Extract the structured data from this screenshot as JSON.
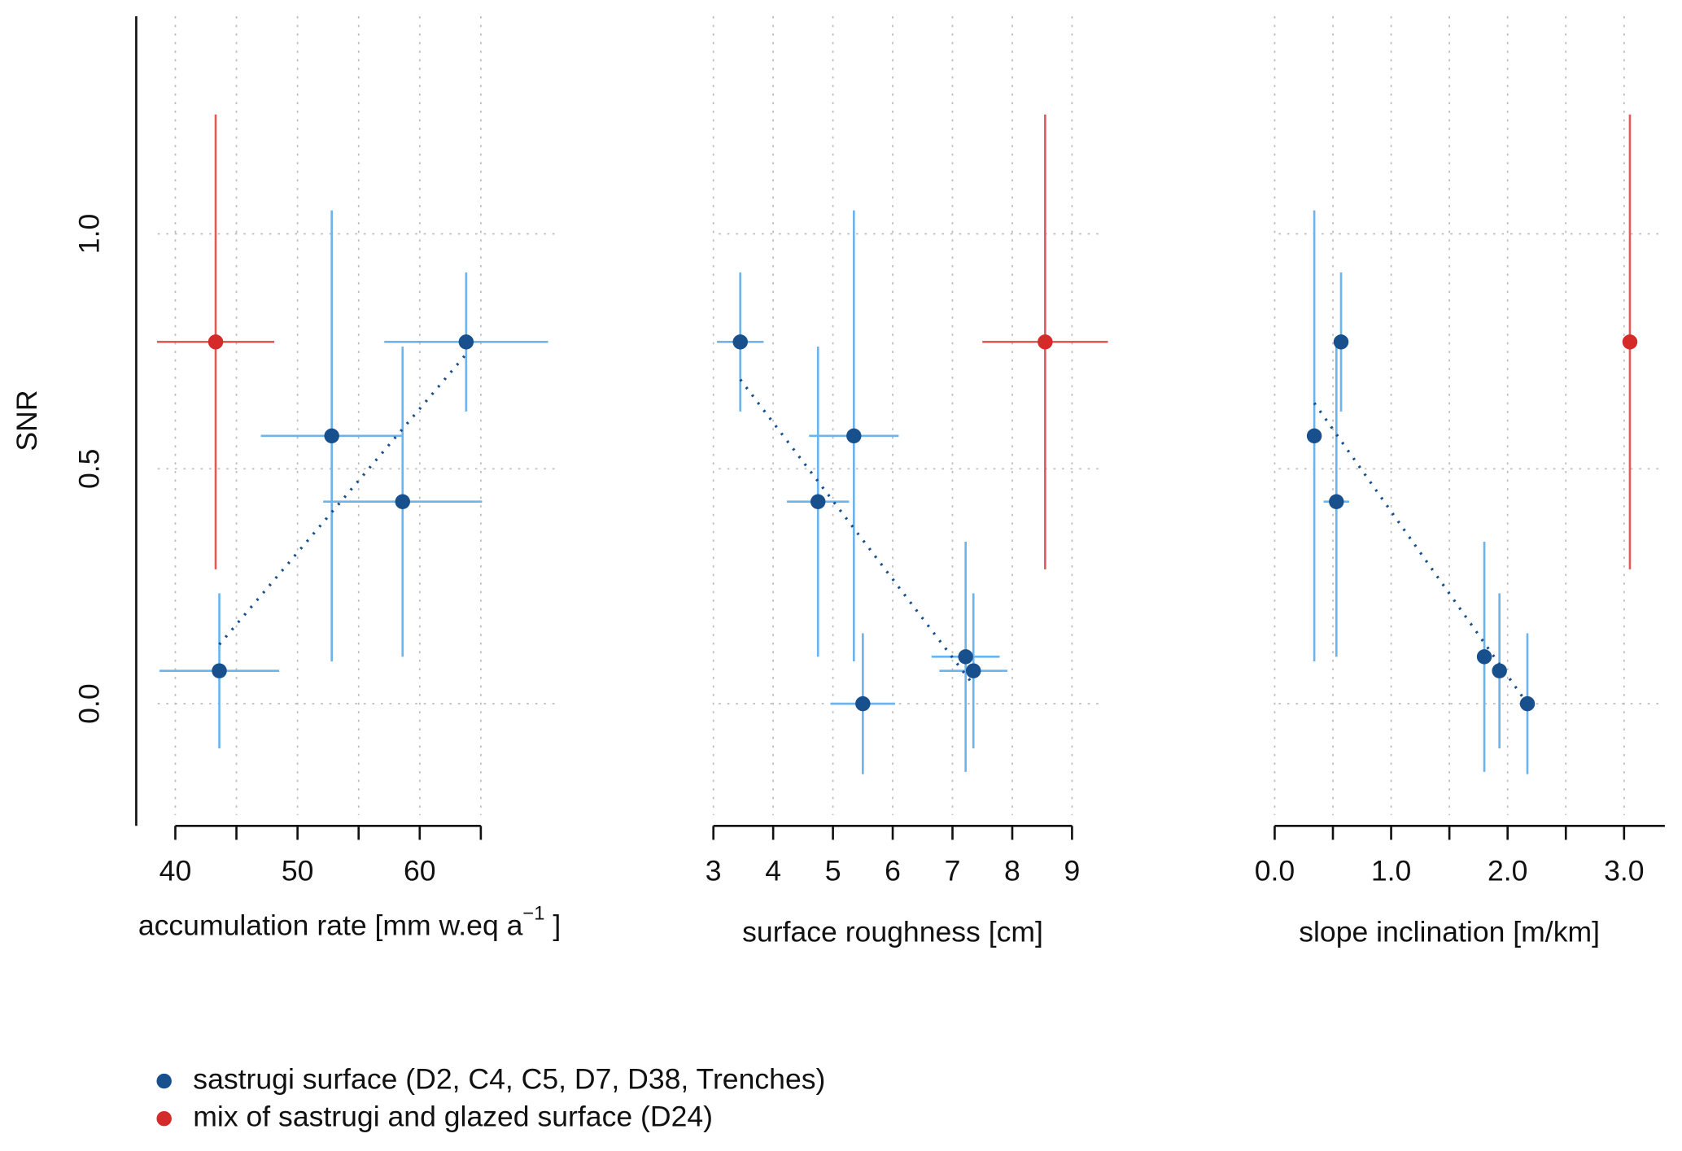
{
  "chart_data": [
    {
      "type": "scatter",
      "ylabel": "SNR",
      "xlabel": "accumulation rate [mm w.eq a",
      "xlabel_sup": "−1",
      "xlabel_end": " ]",
      "xlim": [
        36.8,
        71.3
      ],
      "xticks": [
        40,
        50,
        60
      ],
      "xminor": [
        45,
        55,
        65
      ],
      "ylim": [
        -0.26,
        1.463
      ],
      "yticks": [
        {
          "value": 0,
          "label": "0.0"
        },
        {
          "value": 0.5,
          "label": "0.5"
        },
        {
          "value": 1.0,
          "label": "1.0"
        }
      ],
      "grid": true,
      "series": [
        {
          "name": "sastrugi surface (D2, C4, C5, D7, D38, Trenches)",
          "color": "#17508c",
          "errcolor": "#6cb4ec",
          "x": [
            43.6,
            52.8,
            58.6,
            63.8
          ],
          "values": [
            0.07,
            0.57,
            0.43,
            0.77
          ],
          "xerr": [
            4.9,
            5.8,
            6.5,
            6.7
          ],
          "yerr": [
            0.165,
            0.48,
            0.33,
            0.148
          ]
        },
        {
          "name": "mix of sastrugi and glazed surface (D24)",
          "color": "#d42a2a",
          "errcolor": "#df5a5a",
          "x": [
            43.3
          ],
          "values": [
            0.77
          ],
          "xerr": [
            4.8
          ],
          "yerr": [
            0.484
          ]
        }
      ],
      "trend": {
        "color": "#17508c",
        "x": [
          43.6,
          63.8
        ],
        "values": [
          0.126,
          0.744
        ]
      }
    },
    {
      "type": "scatter",
      "xlabel": "surface roughness [cm]",
      "xlim": [
        2.73,
        9.46
      ],
      "xticks": [
        3,
        4,
        5,
        6,
        7,
        8,
        9
      ],
      "ylim": [
        -0.26,
        1.463
      ],
      "yticks": [
        0,
        0.5,
        1.0
      ],
      "grid": true,
      "series": [
        {
          "name": "sastrugi surface (D2, C4, C5, D7, D38, Trenches)",
          "color": "#17508c",
          "errcolor": "#6cb4ec",
          "x": [
            3.45,
            4.75,
            5.35,
            5.5,
            7.22,
            7.35
          ],
          "values": [
            0.77,
            0.43,
            0.57,
            0.0,
            0.1,
            0.07
          ],
          "xerr": [
            0.39,
            0.52,
            0.75,
            0.54,
            0.57,
            0.57
          ],
          "yerr": [
            0.148,
            0.33,
            0.48,
            0.15,
            0.245,
            0.165
          ]
        },
        {
          "name": "mix of sastrugi and glazed surface (D24)",
          "color": "#d42a2a",
          "errcolor": "#df5a5a",
          "x": [
            8.55
          ],
          "values": [
            0.77
          ],
          "xerr": [
            1.05
          ],
          "yerr": [
            0.484
          ]
        }
      ],
      "trend": {
        "color": "#17508c",
        "x": [
          3.45,
          7.35
        ],
        "values": [
          0.69,
          0.04
        ]
      }
    },
    {
      "type": "scatter",
      "xlabel": "slope inclination [m/km]",
      "xlim": [
        -0.15,
        3.35
      ],
      "xticks": [
        {
          "value": 0,
          "label": "0.0"
        },
        {
          "value": 1,
          "label": "1.0"
        },
        {
          "value": 2,
          "label": "2.0"
        },
        {
          "value": 3,
          "label": "3.0"
        }
      ],
      "xminor": [
        0.5,
        1.5,
        2.5
      ],
      "ylim": [
        -0.26,
        1.463
      ],
      "yticks": [
        0,
        0.5,
        1.0
      ],
      "grid": true,
      "series": [
        {
          "name": "sastrugi surface (D2, C4, C5, D7, D38, Trenches)",
          "color": "#17508c",
          "errcolor": "#6cb4ec",
          "x": [
            0.34,
            0.53,
            0.57,
            1.8,
            1.93,
            2.17
          ],
          "values": [
            0.57,
            0.43,
            0.77,
            0.1,
            0.07,
            0.0
          ],
          "xerr": [
            null,
            0.11,
            null,
            null,
            null,
            null
          ],
          "yerr": [
            0.48,
            0.33,
            0.148,
            0.245,
            0.165,
            0.15
          ]
        },
        {
          "name": "mix of sastrugi and glazed surface (D24)",
          "color": "#d42a2a",
          "errcolor": "#df5a5a",
          "x": [
            3.05
          ],
          "values": [
            0.77
          ],
          "yerr": [
            0.484
          ]
        }
      ],
      "trend": {
        "color": "#17508c",
        "x": [
          0.34,
          2.17
        ],
        "values": [
          0.64,
          0.0
        ]
      }
    }
  ]
}
